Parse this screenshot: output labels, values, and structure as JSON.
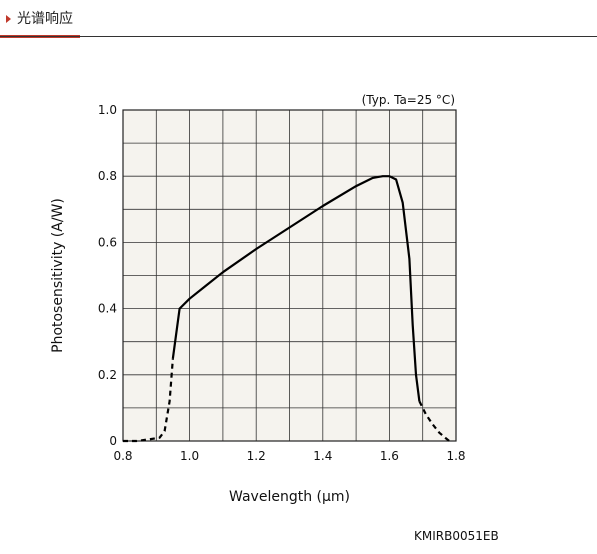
{
  "header": {
    "title": "光谱响应"
  },
  "figure_code": "KMIRB0051EB",
  "chart_data": {
    "type": "line",
    "title": "",
    "annotation": "(Typ. Ta=25 °C)",
    "xlabel": "Wavelength (μm)",
    "ylabel": "Photosensitivity (A/W)",
    "xlim": [
      0.8,
      1.8
    ],
    "ylim": [
      0,
      1.0
    ],
    "x_ticks": [
      "0.8",
      "1.0",
      "1.2",
      "1.4",
      "1.6",
      "1.8"
    ],
    "y_ticks": [
      "0",
      "0.2",
      "0.4",
      "0.6",
      "0.8",
      "1.0"
    ],
    "grid": true,
    "colors": {
      "line": "#000000",
      "plot_bg": "#f5f3ee",
      "grid": "#333333"
    },
    "series": [
      {
        "style": "dashed",
        "x": [
          0.8,
          0.84,
          0.88,
          0.91,
          0.925,
          0.94,
          0.95
        ],
        "y": [
          0.0,
          0.0,
          0.005,
          0.01,
          0.03,
          0.12,
          0.25
        ]
      },
      {
        "style": "solid",
        "x": [
          0.95,
          0.97,
          1.0,
          1.05,
          1.1,
          1.2,
          1.3,
          1.4,
          1.5,
          1.55,
          1.58,
          1.6,
          1.62,
          1.64,
          1.66,
          1.67,
          1.68,
          1.69
        ],
        "y": [
          0.25,
          0.4,
          0.43,
          0.47,
          0.51,
          0.58,
          0.645,
          0.71,
          0.77,
          0.795,
          0.8,
          0.8,
          0.79,
          0.72,
          0.55,
          0.35,
          0.2,
          0.12
        ]
      },
      {
        "style": "dashed",
        "x": [
          1.69,
          1.71,
          1.73,
          1.75,
          1.77,
          1.78
        ],
        "y": [
          0.12,
          0.08,
          0.05,
          0.025,
          0.008,
          0.0
        ]
      }
    ]
  }
}
